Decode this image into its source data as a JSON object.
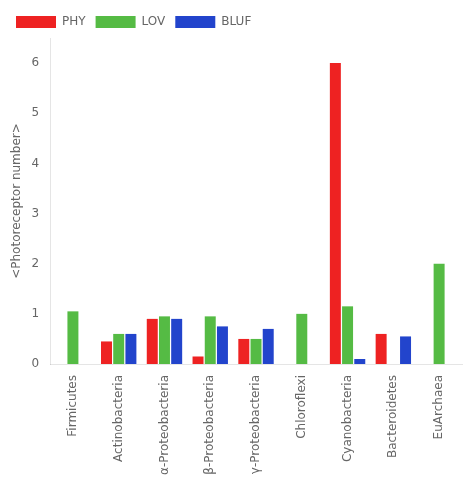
{
  "chart_data": {
    "type": "bar",
    "categories": [
      "Firmicutes",
      "Actinobacteria",
      "α-Proteobacteria",
      "β-Proteobacteria",
      "γ-Proteobacteria",
      "Chloroflexi",
      "Cyanobacteria",
      "Bacteroidetes",
      "EuArchaea"
    ],
    "series": [
      {
        "name": "PHY",
        "color": "#ee2222",
        "values": [
          0,
          0.45,
          0.9,
          0.15,
          0.5,
          0,
          6.0,
          0.6,
          0
        ]
      },
      {
        "name": "LOV",
        "color": "#55bb44",
        "values": [
          1.05,
          0.6,
          0.95,
          0.95,
          0.5,
          1.0,
          1.15,
          0,
          2.0
        ]
      },
      {
        "name": "BLUF",
        "color": "#2244cc",
        "values": [
          0,
          0.6,
          0.9,
          0.75,
          0.7,
          0,
          0.1,
          0.55,
          0
        ]
      }
    ],
    "ylabel": "<Photoreceptor number>",
    "ylim": [
      0,
      6.5
    ],
    "yticks": [
      0,
      1,
      2,
      3,
      4,
      5,
      6
    ],
    "grid": false,
    "legend": "upper left"
  }
}
